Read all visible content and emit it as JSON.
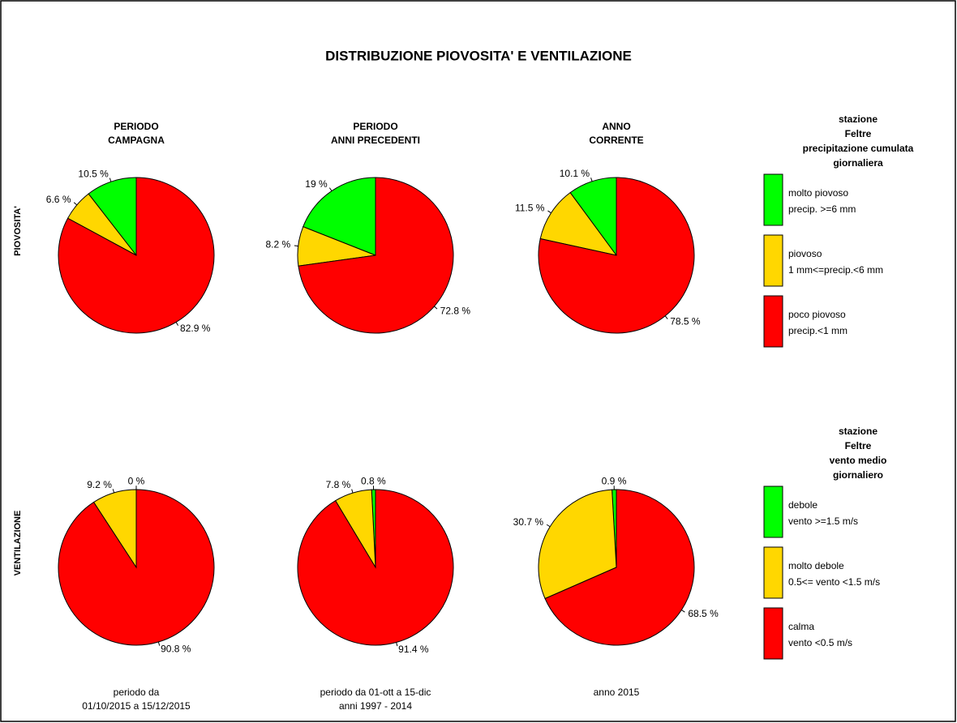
{
  "title": "DISTRIBUZIONE PIOVOSITA' E VENTILAZIONE",
  "columns": [
    {
      "title": [
        "PERIODO",
        "CAMPAGNA"
      ],
      "footer": [
        "periodo da",
        "01/10/2015  a   15/12/2015"
      ]
    },
    {
      "title": [
        "PERIODO",
        "ANNI PRECEDENTI"
      ],
      "footer": [
        "periodo da  01-ott  a  15-dic",
        "anni 1997 - 2014"
      ]
    },
    {
      "title": [
        "ANNO",
        "CORRENTE"
      ],
      "footer": [
        "anno  2015"
      ]
    }
  ],
  "rows": [
    {
      "label": "PIOVOSITA'",
      "legend": {
        "title": [
          "stazione",
          "Feltre",
          "precipitazione cumulata",
          "giornaliera"
        ],
        "entries": [
          {
            "name": [
              "molto piovoso",
              "precip. >=6 mm"
            ],
            "color": "#00ff00"
          },
          {
            "name": [
              "piovoso",
              "1 mm<=precip.<6 mm"
            ],
            "color": "#ffd700"
          },
          {
            "name": [
              "poco piovoso",
              "precip.<1 mm"
            ],
            "color": "#ff0000"
          }
        ]
      }
    },
    {
      "label": "VENTILAZIONE",
      "legend": {
        "title": [
          "stazione",
          "Feltre",
          "vento medio",
          "giornaliero"
        ],
        "entries": [
          {
            "name": [
              "debole",
              "vento >=1.5 m/s"
            ],
            "color": "#00ff00"
          },
          {
            "name": [
              "molto debole",
              "0.5<= vento <1.5 m/s"
            ],
            "color": "#ffd700"
          },
          {
            "name": [
              "calma",
              "vento <0.5 m/s"
            ],
            "color": "#ff0000"
          }
        ]
      }
    }
  ],
  "chart_data": [
    {
      "type": "pie",
      "values": [
        10.5,
        6.6,
        82.9
      ],
      "value_labels": [
        "10.5 %",
        "6.6 %",
        "82.9 %"
      ],
      "colors": [
        "#00ff00",
        "#ffd700",
        "#ff0000"
      ]
    },
    {
      "type": "pie",
      "values": [
        19,
        8.2,
        72.8
      ],
      "value_labels": [
        "19 %",
        "8.2 %",
        "72.8 %"
      ],
      "colors": [
        "#00ff00",
        "#ffd700",
        "#ff0000"
      ]
    },
    {
      "type": "pie",
      "values": [
        10.1,
        11.5,
        78.5
      ],
      "value_labels": [
        "10.1 %",
        "11.5 %",
        "78.5 %"
      ],
      "colors": [
        "#00ff00",
        "#ffd700",
        "#ff0000"
      ]
    },
    {
      "type": "pie",
      "values": [
        0,
        9.2,
        90.8
      ],
      "value_labels": [
        "0 %",
        "9.2 %",
        "90.8 %"
      ],
      "colors": [
        "#00ff00",
        "#ffd700",
        "#ff0000"
      ]
    },
    {
      "type": "pie",
      "values": [
        0.8,
        7.8,
        91.4
      ],
      "value_labels": [
        "0.8 %",
        "7.8 %",
        "91.4 %"
      ],
      "colors": [
        "#00ff00",
        "#ffd700",
        "#ff0000"
      ]
    },
    {
      "type": "pie",
      "values": [
        0.9,
        30.7,
        68.5
      ],
      "value_labels": [
        "0.9 %",
        "30.7 %",
        "68.5 %"
      ],
      "colors": [
        "#00ff00",
        "#ffd700",
        "#ff0000"
      ]
    }
  ]
}
